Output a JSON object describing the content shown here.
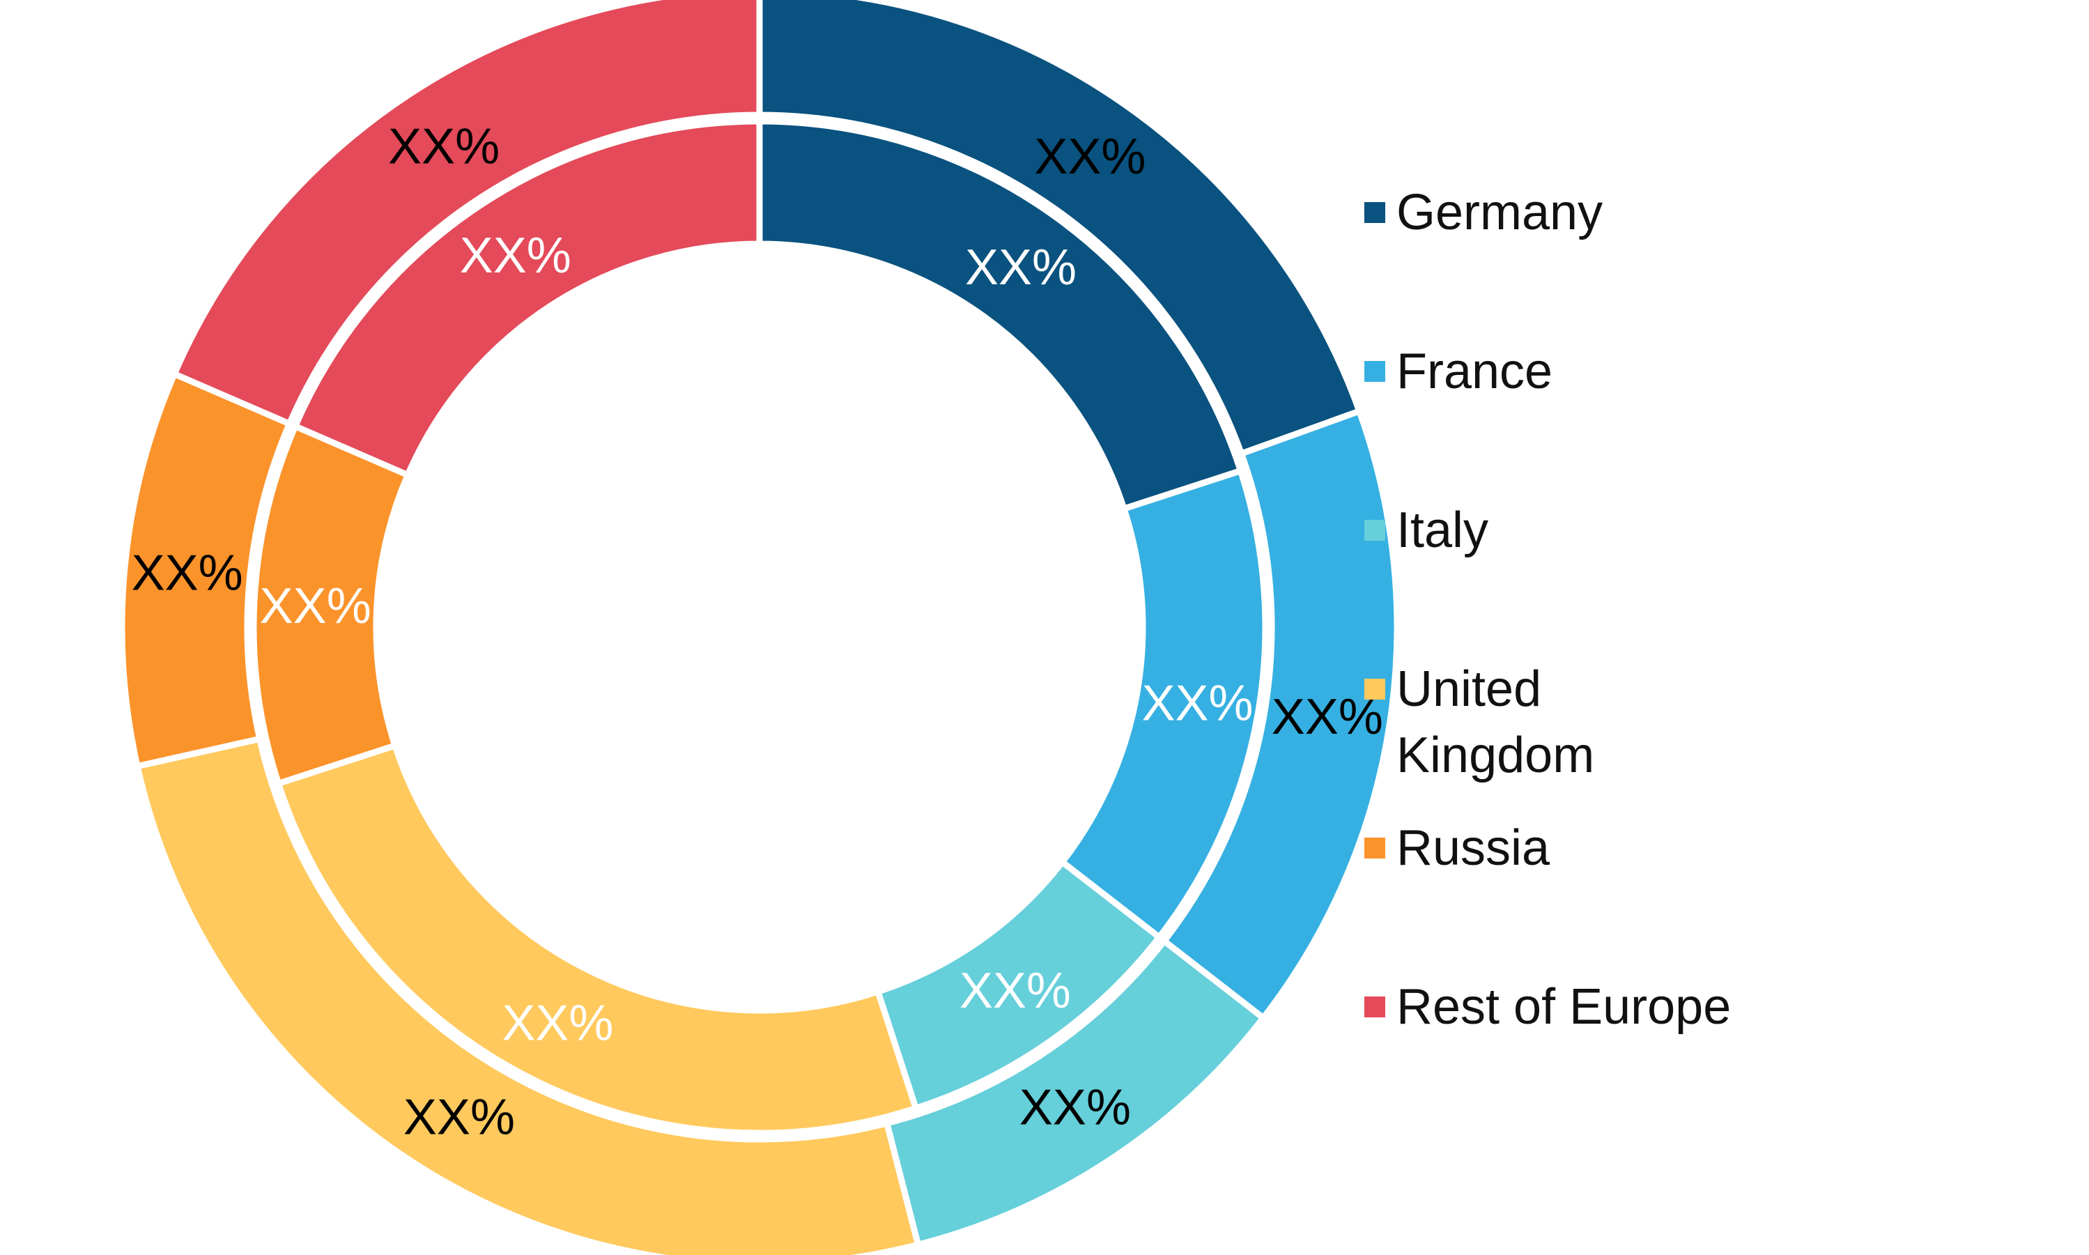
{
  "chart_data": {
    "type": "pie",
    "variant": "nested-donut",
    "legend_position": "right",
    "categories": [
      "Germany",
      "France",
      "Italy",
      "United Kingdom",
      "Russia",
      "Rest of Europe"
    ],
    "legend": [
      {
        "lines": [
          "Germany"
        ],
        "color": "#0A527F"
      },
      {
        "lines": [
          "France"
        ],
        "color": "#36B0E2"
      },
      {
        "lines": [
          "Italy"
        ],
        "color": "#65CFDA"
      },
      {
        "lines": [
          "United",
          "Kingdom"
        ],
        "color": "#FFC95D"
      },
      {
        "lines": [
          "Russia"
        ],
        "color": "#FB932B"
      },
      {
        "lines": [
          "Rest of Europe"
        ],
        "color": "#E44A59"
      }
    ],
    "series": [
      {
        "ring": "outer",
        "values": [
          19.5,
          16.0,
          10.5,
          25.5,
          10.0,
          18.5
        ],
        "labels": [
          "XX%",
          "XX%",
          "XX%",
          "XX%",
          "XX%",
          "XX%"
        ],
        "label_color": "#000000"
      },
      {
        "ring": "inner",
        "values": [
          20.0,
          15.5,
          9.5,
          25.0,
          11.5,
          18.5
        ],
        "labels": [
          "XX%",
          "XX%",
          "XX%",
          "XX%",
          "XX%",
          "XX%"
        ],
        "label_color": "#ffffff"
      }
    ]
  }
}
